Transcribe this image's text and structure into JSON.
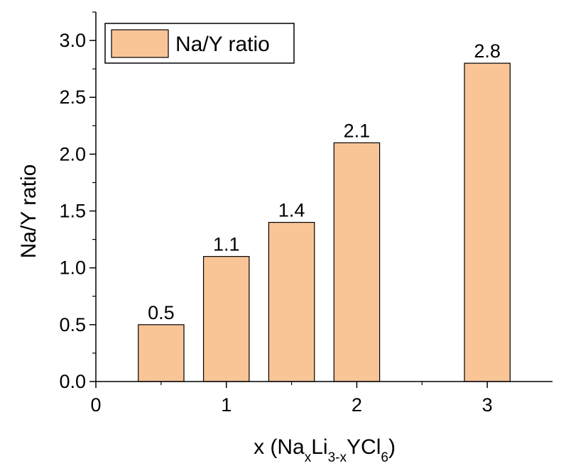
{
  "chart_data": {
    "type": "bar",
    "ylabel": "Na/Y ratio",
    "xlabel": {
      "prefix": "x (Na",
      "sub1": "x",
      "mid1": "Li",
      "sub2": "3-x",
      "mid2": "YCl",
      "sub3": "6",
      "suffix": ")"
    },
    "x": [
      0.5,
      1.0,
      1.5,
      2.0,
      3.0
    ],
    "values": [
      0.5,
      1.1,
      1.4,
      2.1,
      2.8
    ],
    "data_labels": [
      "0.5",
      "1.1",
      "1.4",
      "2.1",
      "2.8"
    ],
    "xlim": [
      0,
      3.5
    ],
    "ylim": [
      0,
      3.25
    ],
    "x_ticks": [
      0,
      1,
      2,
      3
    ],
    "x_tick_labels": [
      "0",
      "1",
      "2",
      "3"
    ],
    "y_ticks": [
      0,
      0.5,
      1.0,
      1.5,
      2.0,
      2.5,
      3.0
    ],
    "y_tick_labels": [
      "0.0",
      "0.5",
      "1.0",
      "1.5",
      "2.0",
      "2.5",
      "3.0"
    ],
    "bar_color": "#f9c597",
    "edge_color": "#000000",
    "legend": {
      "label": "Na/Y ratio",
      "position": "top-left"
    },
    "grid": false
  }
}
